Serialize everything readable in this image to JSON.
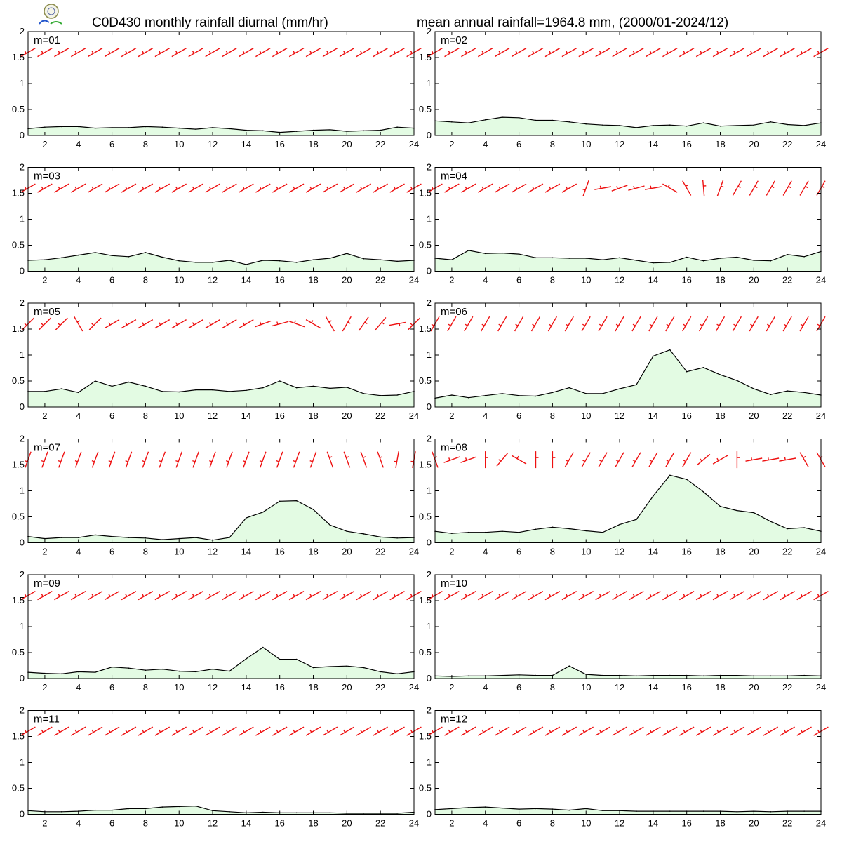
{
  "title_left": "C0D430 monthly rainfall diurnal (mm/hr)",
  "title_right": "mean annual rainfall=1964.8 mm, (2000/01-2024/12)",
  "colors": {
    "area_fill": "#e3fbe3",
    "line": "#000000",
    "wind_barb": "#ee1111"
  },
  "logo": {
    "name": "lab-logo-icon"
  },
  "chart_data": [
    {
      "type": "area",
      "label": "m=01",
      "x": [
        1,
        2,
        3,
        4,
        5,
        6,
        7,
        8,
        9,
        10,
        11,
        12,
        13,
        14,
        15,
        16,
        17,
        18,
        19,
        20,
        21,
        22,
        23,
        24
      ],
      "ylim": [
        0,
        2
      ],
      "yticks": [
        0,
        0.5,
        1,
        1.5,
        2
      ],
      "xticks": [
        2,
        4,
        6,
        8,
        10,
        12,
        14,
        16,
        18,
        20,
        22,
        24
      ],
      "values": [
        0.13,
        0.16,
        0.17,
        0.17,
        0.14,
        0.15,
        0.15,
        0.17,
        0.16,
        0.14,
        0.12,
        0.15,
        0.13,
        0.1,
        0.09,
        0.06,
        0.08,
        0.1,
        0.11,
        0.08,
        0.09,
        0.1,
        0.16,
        0.14
      ],
      "wind_dir_deg": [
        240,
        240,
        240,
        240,
        240,
        240,
        240,
        240,
        240,
        240,
        240,
        240,
        240,
        240,
        240,
        240,
        240,
        240,
        240,
        240,
        240,
        240,
        240,
        240
      ]
    },
    {
      "type": "area",
      "label": "m=02",
      "x": [
        1,
        2,
        3,
        4,
        5,
        6,
        7,
        8,
        9,
        10,
        11,
        12,
        13,
        14,
        15,
        16,
        17,
        18,
        19,
        20,
        21,
        22,
        23,
        24
      ],
      "ylim": [
        0,
        2
      ],
      "yticks": [
        0,
        0.5,
        1,
        1.5,
        2
      ],
      "xticks": [
        2,
        4,
        6,
        8,
        10,
        12,
        14,
        16,
        18,
        20,
        22,
        24
      ],
      "values": [
        0.28,
        0.26,
        0.24,
        0.3,
        0.35,
        0.34,
        0.29,
        0.29,
        0.26,
        0.22,
        0.2,
        0.19,
        0.15,
        0.19,
        0.2,
        0.18,
        0.24,
        0.18,
        0.19,
        0.2,
        0.26,
        0.21,
        0.19,
        0.24
      ],
      "wind_dir_deg": [
        240,
        240,
        240,
        240,
        240,
        240,
        240,
        240,
        240,
        240,
        240,
        240,
        240,
        240,
        240,
        240,
        240,
        240,
        240,
        240,
        240,
        240,
        240,
        240
      ]
    },
    {
      "type": "area",
      "label": "m=03",
      "x": [
        1,
        2,
        3,
        4,
        5,
        6,
        7,
        8,
        9,
        10,
        11,
        12,
        13,
        14,
        15,
        16,
        17,
        18,
        19,
        20,
        21,
        22,
        23,
        24
      ],
      "ylim": [
        0,
        2
      ],
      "yticks": [
        0,
        0.5,
        1,
        1.5,
        2
      ],
      "xticks": [
        2,
        4,
        6,
        8,
        10,
        12,
        14,
        16,
        18,
        20,
        22,
        24
      ],
      "values": [
        0.21,
        0.22,
        0.26,
        0.31,
        0.36,
        0.3,
        0.28,
        0.36,
        0.27,
        0.2,
        0.17,
        0.17,
        0.21,
        0.13,
        0.21,
        0.2,
        0.17,
        0.22,
        0.25,
        0.34,
        0.24,
        0.22,
        0.19,
        0.21
      ],
      "wind_dir_deg": [
        240,
        240,
        240,
        240,
        240,
        240,
        240,
        240,
        240,
        240,
        240,
        240,
        240,
        240,
        240,
        240,
        240,
        240,
        240,
        240,
        240,
        240,
        240,
        240
      ]
    },
    {
      "type": "area",
      "label": "m=04",
      "x": [
        1,
        2,
        3,
        4,
        5,
        6,
        7,
        8,
        9,
        10,
        11,
        12,
        13,
        14,
        15,
        16,
        17,
        18,
        19,
        20,
        21,
        22,
        23,
        24
      ],
      "ylim": [
        0,
        2
      ],
      "yticks": [
        0,
        0.5,
        1,
        1.5,
        2
      ],
      "xticks": [
        2,
        4,
        6,
        8,
        10,
        12,
        14,
        16,
        18,
        20,
        22,
        24
      ],
      "values": [
        0.25,
        0.22,
        0.4,
        0.34,
        0.35,
        0.33,
        0.26,
        0.26,
        0.25,
        0.25,
        0.22,
        0.26,
        0.21,
        0.16,
        0.17,
        0.27,
        0.2,
        0.25,
        0.27,
        0.21,
        0.2,
        0.32,
        0.28,
        0.38
      ],
      "wind_dir_deg": [
        240,
        240,
        240,
        240,
        240,
        240,
        240,
        240,
        240,
        200,
        260,
        250,
        255,
        260,
        300,
        330,
        355,
        20,
        30,
        30,
        30,
        30,
        30,
        30
      ]
    },
    {
      "type": "area",
      "label": "m=05",
      "x": [
        1,
        2,
        3,
        4,
        5,
        6,
        7,
        8,
        9,
        10,
        11,
        12,
        13,
        14,
        15,
        16,
        17,
        18,
        19,
        20,
        21,
        22,
        23,
        24
      ],
      "ylim": [
        0,
        2
      ],
      "yticks": [
        0,
        0.5,
        1,
        1.5,
        2
      ],
      "xticks": [
        2,
        4,
        6,
        8,
        10,
        12,
        14,
        16,
        18,
        20,
        22,
        24
      ],
      "values": [
        0.3,
        0.3,
        0.35,
        0.28,
        0.5,
        0.4,
        0.48,
        0.4,
        0.3,
        0.29,
        0.33,
        0.33,
        0.3,
        0.32,
        0.37,
        0.5,
        0.37,
        0.4,
        0.36,
        0.38,
        0.26,
        0.22,
        0.23,
        0.3
      ],
      "wind_dir_deg": [
        225,
        225,
        225,
        330,
        225,
        240,
        240,
        240,
        240,
        240,
        240,
        240,
        240,
        240,
        250,
        255,
        290,
        300,
        330,
        30,
        35,
        40,
        80,
        225
      ]
    },
    {
      "type": "area",
      "label": "m=06",
      "x": [
        1,
        2,
        3,
        4,
        5,
        6,
        7,
        8,
        9,
        10,
        11,
        12,
        13,
        14,
        15,
        16,
        17,
        18,
        19,
        20,
        21,
        22,
        23,
        24
      ],
      "ylim": [
        0,
        2
      ],
      "yticks": [
        0,
        0.5,
        1,
        1.5,
        2
      ],
      "xticks": [
        2,
        4,
        6,
        8,
        10,
        12,
        14,
        16,
        18,
        20,
        22,
        24
      ],
      "values": [
        0.17,
        0.23,
        0.18,
        0.22,
        0.26,
        0.22,
        0.21,
        0.28,
        0.37,
        0.26,
        0.26,
        0.35,
        0.43,
        0.98,
        1.1,
        0.68,
        0.76,
        0.62,
        0.51,
        0.35,
        0.24,
        0.31,
        0.28,
        0.23
      ],
      "wind_dir_deg": [
        210,
        210,
        210,
        210,
        210,
        210,
        210,
        210,
        210,
        210,
        210,
        210,
        210,
        210,
        210,
        210,
        210,
        210,
        210,
        210,
        210,
        210,
        210,
        210
      ]
    },
    {
      "type": "area",
      "label": "m=07",
      "x": [
        1,
        2,
        3,
        4,
        5,
        6,
        7,
        8,
        9,
        10,
        11,
        12,
        13,
        14,
        15,
        16,
        17,
        18,
        19,
        20,
        21,
        22,
        23,
        24
      ],
      "ylim": [
        0,
        2
      ],
      "yticks": [
        0,
        0.5,
        1,
        1.5,
        2
      ],
      "xticks": [
        2,
        4,
        6,
        8,
        10,
        12,
        14,
        16,
        18,
        20,
        22,
        24
      ],
      "values": [
        0.12,
        0.08,
        0.1,
        0.1,
        0.15,
        0.12,
        0.1,
        0.09,
        0.06,
        0.08,
        0.1,
        0.05,
        0.1,
        0.48,
        0.59,
        0.8,
        0.81,
        0.64,
        0.34,
        0.22,
        0.17,
        0.11,
        0.09,
        0.1
      ],
      "wind_dir_deg": [
        200,
        200,
        200,
        200,
        200,
        200,
        200,
        200,
        200,
        200,
        200,
        200,
        200,
        200,
        200,
        200,
        200,
        200,
        340,
        340,
        340,
        340,
        190,
        190
      ]
    },
    {
      "type": "area",
      "label": "m=08",
      "x": [
        1,
        2,
        3,
        4,
        5,
        6,
        7,
        8,
        9,
        10,
        11,
        12,
        13,
        14,
        15,
        16,
        17,
        18,
        19,
        20,
        21,
        22,
        23,
        24
      ],
      "ylim": [
        0,
        2
      ],
      "yticks": [
        0,
        0.5,
        1,
        1.5,
        2
      ],
      "xticks": [
        2,
        4,
        6,
        8,
        10,
        12,
        14,
        16,
        18,
        20,
        22,
        24
      ],
      "values": [
        0.22,
        0.18,
        0.2,
        0.2,
        0.22,
        0.2,
        0.26,
        0.3,
        0.27,
        0.23,
        0.2,
        0.35,
        0.45,
        0.9,
        1.3,
        1.22,
        0.98,
        0.7,
        0.62,
        0.58,
        0.41,
        0.27,
        0.29,
        0.22
      ],
      "wind_dir_deg": [
        340,
        250,
        250,
        0,
        220,
        300,
        0,
        0,
        210,
        210,
        210,
        210,
        210,
        210,
        210,
        210,
        230,
        240,
        0,
        260,
        260,
        260,
        330,
        330
      ]
    },
    {
      "type": "area",
      "label": "m=09",
      "x": [
        1,
        2,
        3,
        4,
        5,
        6,
        7,
        8,
        9,
        10,
        11,
        12,
        13,
        14,
        15,
        16,
        17,
        18,
        19,
        20,
        21,
        22,
        23,
        24
      ],
      "ylim": [
        0,
        2
      ],
      "yticks": [
        0,
        0.5,
        1,
        1.5,
        2
      ],
      "xticks": [
        2,
        4,
        6,
        8,
        10,
        12,
        14,
        16,
        18,
        20,
        22,
        24
      ],
      "values": [
        0.12,
        0.1,
        0.09,
        0.13,
        0.12,
        0.22,
        0.2,
        0.16,
        0.18,
        0.14,
        0.13,
        0.18,
        0.14,
        0.38,
        0.6,
        0.37,
        0.37,
        0.21,
        0.23,
        0.24,
        0.21,
        0.13,
        0.09,
        0.13
      ],
      "wind_dir_deg": [
        240,
        240,
        240,
        240,
        240,
        240,
        240,
        240,
        240,
        240,
        240,
        240,
        240,
        240,
        240,
        240,
        240,
        240,
        240,
        240,
        240,
        240,
        240,
        240
      ]
    },
    {
      "type": "area",
      "label": "m=10",
      "x": [
        1,
        2,
        3,
        4,
        5,
        6,
        7,
        8,
        9,
        10,
        11,
        12,
        13,
        14,
        15,
        16,
        17,
        18,
        19,
        20,
        21,
        22,
        23,
        24
      ],
      "ylim": [
        0,
        2
      ],
      "yticks": [
        0,
        0.5,
        1,
        1.5,
        2
      ],
      "xticks": [
        2,
        4,
        6,
        8,
        10,
        12,
        14,
        16,
        18,
        20,
        22,
        24
      ],
      "values": [
        0.05,
        0.04,
        0.05,
        0.05,
        0.06,
        0.07,
        0.06,
        0.06,
        0.24,
        0.08,
        0.06,
        0.06,
        0.05,
        0.06,
        0.06,
        0.06,
        0.05,
        0.06,
        0.06,
        0.05,
        0.05,
        0.05,
        0.06,
        0.05
      ],
      "wind_dir_deg": [
        240,
        240,
        240,
        240,
        240,
        240,
        240,
        240,
        240,
        240,
        240,
        240,
        240,
        240,
        240,
        240,
        240,
        240,
        240,
        240,
        240,
        240,
        240,
        240
      ]
    },
    {
      "type": "area",
      "label": "m=11",
      "x": [
        1,
        2,
        3,
        4,
        5,
        6,
        7,
        8,
        9,
        10,
        11,
        12,
        13,
        14,
        15,
        16,
        17,
        18,
        19,
        20,
        21,
        22,
        23,
        24
      ],
      "ylim": [
        0,
        2
      ],
      "yticks": [
        0,
        0.5,
        1,
        1.5,
        2
      ],
      "xticks": [
        2,
        4,
        6,
        8,
        10,
        12,
        14,
        16,
        18,
        20,
        22,
        24
      ],
      "values": [
        0.07,
        0.05,
        0.05,
        0.06,
        0.08,
        0.08,
        0.11,
        0.11,
        0.14,
        0.15,
        0.16,
        0.07,
        0.05,
        0.03,
        0.04,
        0.03,
        0.03,
        0.03,
        0.03,
        0.02,
        0.02,
        0.02,
        0.02,
        0.04
      ],
      "wind_dir_deg": [
        240,
        240,
        240,
        240,
        240,
        240,
        240,
        240,
        240,
        240,
        240,
        240,
        240,
        240,
        240,
        240,
        240,
        240,
        240,
        240,
        240,
        240,
        240,
        240
      ]
    },
    {
      "type": "area",
      "label": "m=12",
      "x": [
        1,
        2,
        3,
        4,
        5,
        6,
        7,
        8,
        9,
        10,
        11,
        12,
        13,
        14,
        15,
        16,
        17,
        18,
        19,
        20,
        21,
        22,
        23,
        24
      ],
      "ylim": [
        0,
        2
      ],
      "yticks": [
        0,
        0.5,
        1,
        1.5,
        2
      ],
      "xticks": [
        2,
        4,
        6,
        8,
        10,
        12,
        14,
        16,
        18,
        20,
        22,
        24
      ],
      "values": [
        0.09,
        0.11,
        0.13,
        0.14,
        0.12,
        0.1,
        0.11,
        0.1,
        0.08,
        0.11,
        0.07,
        0.07,
        0.06,
        0.06,
        0.06,
        0.06,
        0.06,
        0.06,
        0.05,
        0.06,
        0.05,
        0.06,
        0.06,
        0.06
      ],
      "wind_dir_deg": [
        240,
        240,
        240,
        240,
        240,
        240,
        240,
        240,
        240,
        240,
        240,
        240,
        240,
        240,
        240,
        240,
        240,
        240,
        240,
        240,
        240,
        240,
        240,
        240
      ]
    }
  ]
}
